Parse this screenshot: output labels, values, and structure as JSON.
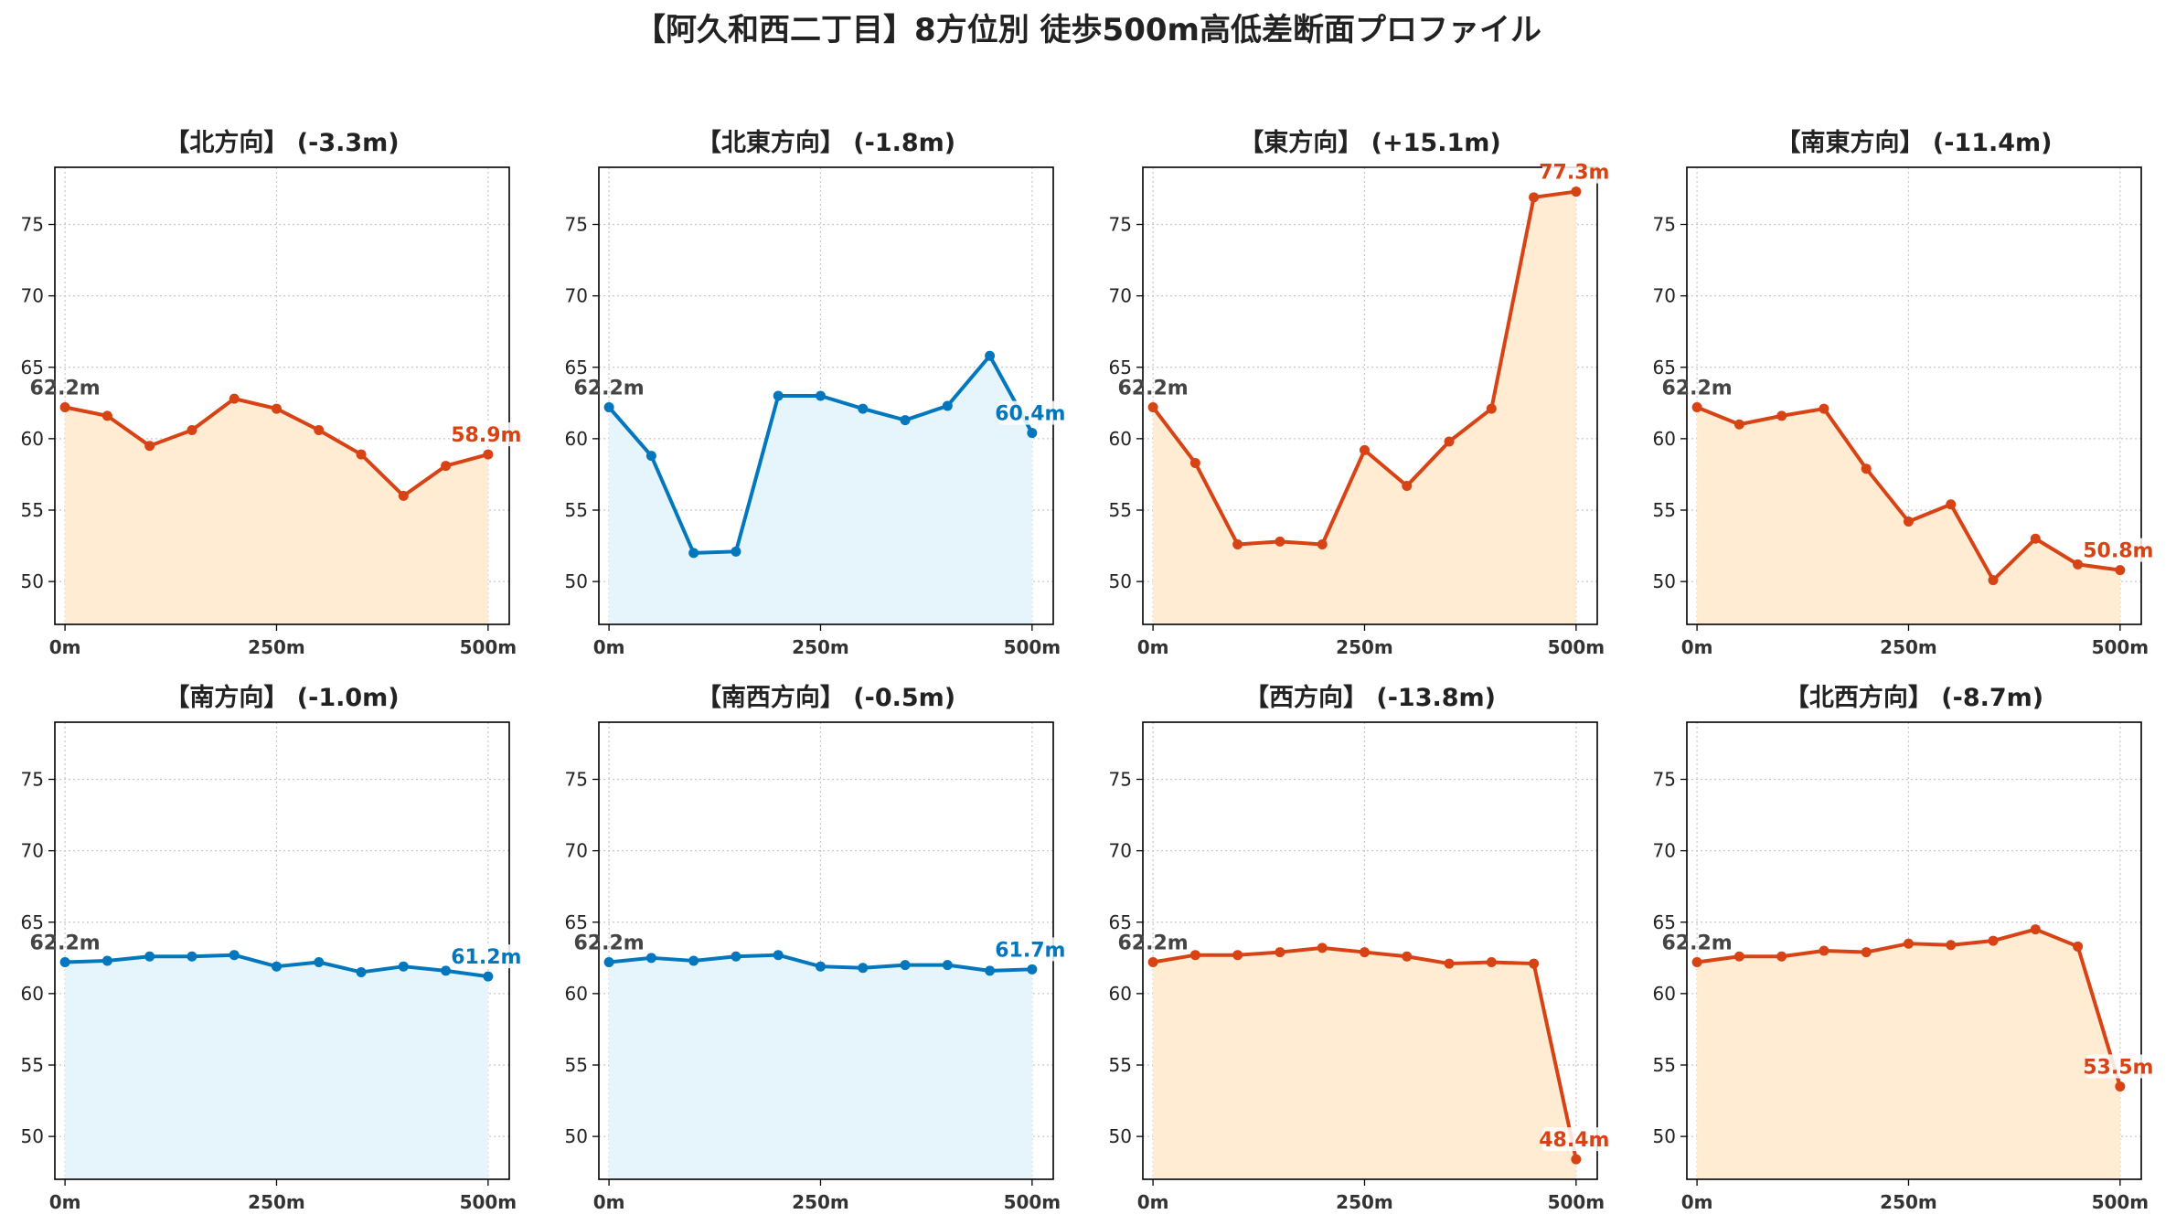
{
  "title": "【阿久和西二丁目】8方位別 徒歩500m高低差断面プロファイル",
  "colors": {
    "up": "#d84315",
    "down": "#0277bd",
    "fill_up": "#ffecd2",
    "fill_down": "#e6f5fb",
    "start_label": "#444444"
  },
  "x_ticks": [
    "0m",
    "250m",
    "500m"
  ],
  "y_ticks": [
    50,
    55,
    60,
    65,
    70,
    75
  ],
  "chart_data": [
    {
      "type": "area",
      "title": "【北方向】 (-3.3m)",
      "trend": "up",
      "start_label": "62.2m",
      "end_label": "58.9m",
      "x": [
        0,
        50,
        100,
        150,
        200,
        250,
        300,
        350,
        400,
        450,
        500
      ],
      "values": [
        62.2,
        61.6,
        59.5,
        60.6,
        62.8,
        62.1,
        60.6,
        58.9,
        56.0,
        58.1,
        58.9
      ],
      "xlim": [
        -12,
        525
      ],
      "ylim": [
        47,
        79
      ],
      "grid": true
    },
    {
      "type": "area",
      "title": "【北東方向】 (-1.8m)",
      "trend": "down",
      "start_label": "62.2m",
      "end_label": "60.4m",
      "x": [
        0,
        50,
        100,
        150,
        200,
        250,
        300,
        350,
        400,
        450,
        500
      ],
      "values": [
        62.2,
        58.8,
        52.0,
        52.1,
        63.0,
        63.0,
        62.1,
        61.3,
        62.3,
        65.8,
        60.4
      ],
      "xlim": [
        -12,
        525
      ],
      "ylim": [
        47,
        79
      ],
      "grid": true
    },
    {
      "type": "area",
      "title": "【東方向】 (+15.1m)",
      "trend": "up",
      "start_label": "62.2m",
      "end_label": "77.3m",
      "x": [
        0,
        50,
        100,
        150,
        200,
        250,
        300,
        350,
        400,
        450,
        500
      ],
      "values": [
        62.2,
        58.3,
        52.6,
        52.8,
        52.6,
        59.2,
        56.7,
        59.8,
        62.1,
        76.9,
        77.3
      ],
      "xlim": [
        -12,
        525
      ],
      "ylim": [
        47,
        79
      ],
      "grid": true
    },
    {
      "type": "area",
      "title": "【南東方向】 (-11.4m)",
      "trend": "up",
      "start_label": "62.2m",
      "end_label": "50.8m",
      "x": [
        0,
        50,
        100,
        150,
        200,
        250,
        300,
        350,
        400,
        450,
        500
      ],
      "values": [
        62.2,
        61.0,
        61.6,
        62.1,
        57.9,
        54.2,
        55.4,
        50.1,
        53.0,
        51.2,
        50.8
      ],
      "xlim": [
        -12,
        525
      ],
      "ylim": [
        47,
        79
      ],
      "grid": true
    },
    {
      "type": "area",
      "title": "【南方向】 (-1.0m)",
      "trend": "down",
      "start_label": "62.2m",
      "end_label": "61.2m",
      "x": [
        0,
        50,
        100,
        150,
        200,
        250,
        300,
        350,
        400,
        450,
        500
      ],
      "values": [
        62.2,
        62.3,
        62.6,
        62.6,
        62.7,
        61.9,
        62.2,
        61.5,
        61.9,
        61.6,
        61.2
      ],
      "xlim": [
        -12,
        525
      ],
      "ylim": [
        47,
        79
      ],
      "grid": true
    },
    {
      "type": "area",
      "title": "【南西方向】 (-0.5m)",
      "trend": "down",
      "start_label": "62.2m",
      "end_label": "61.7m",
      "x": [
        0,
        50,
        100,
        150,
        200,
        250,
        300,
        350,
        400,
        450,
        500
      ],
      "values": [
        62.2,
        62.5,
        62.3,
        62.6,
        62.7,
        61.9,
        61.8,
        62.0,
        62.0,
        61.6,
        61.7
      ],
      "xlim": [
        -12,
        525
      ],
      "ylim": [
        47,
        79
      ],
      "grid": true
    },
    {
      "type": "area",
      "title": "【西方向】 (-13.8m)",
      "trend": "up",
      "start_label": "62.2m",
      "end_label": "48.4m",
      "x": [
        0,
        50,
        100,
        150,
        200,
        250,
        300,
        350,
        400,
        450,
        500
      ],
      "values": [
        62.2,
        62.7,
        62.7,
        62.9,
        63.2,
        62.9,
        62.6,
        62.1,
        62.2,
        62.1,
        48.4
      ],
      "xlim": [
        -12,
        525
      ],
      "ylim": [
        47,
        79
      ],
      "grid": true
    },
    {
      "type": "area",
      "title": "【北西方向】 (-8.7m)",
      "trend": "up",
      "start_label": "62.2m",
      "end_label": "53.5m",
      "x": [
        0,
        50,
        100,
        150,
        200,
        250,
        300,
        350,
        400,
        450,
        500
      ],
      "values": [
        62.2,
        62.6,
        62.6,
        63.0,
        62.9,
        63.5,
        63.4,
        63.7,
        64.5,
        63.3,
        53.5
      ],
      "xlim": [
        -12,
        525
      ],
      "ylim": [
        47,
        79
      ],
      "grid": true
    }
  ]
}
